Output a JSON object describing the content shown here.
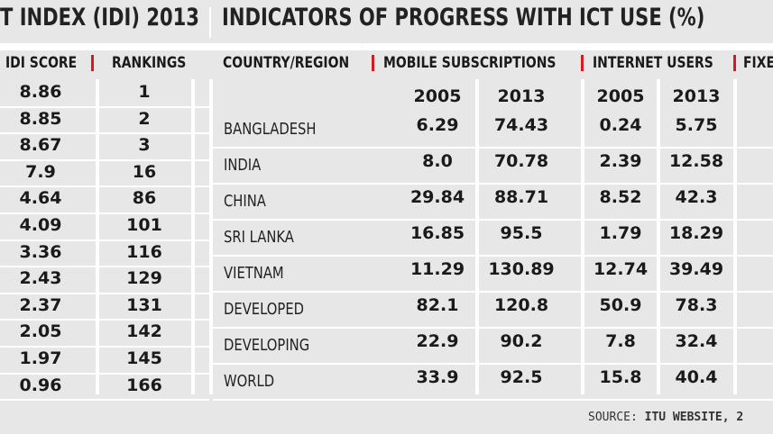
{
  "titles": {
    "left": "T INDEX (IDI) 2013",
    "right": "INDICATORS OF PROGRESS WITH ICT USE (%)"
  },
  "left_table": {
    "col_idi": "IDI SCORE",
    "col_rank": "RANKINGS",
    "rows": [
      {
        "score": "8.86",
        "rank": "1"
      },
      {
        "score": "8.85",
        "rank": "2"
      },
      {
        "score": "8.67",
        "rank": "3"
      },
      {
        "score": "7.9",
        "rank": "16"
      },
      {
        "score": "4.64",
        "rank": "86"
      },
      {
        "score": "4.09",
        "rank": "101"
      },
      {
        "score": "3.36",
        "rank": "116"
      },
      {
        "score": "2.43",
        "rank": "129"
      },
      {
        "score": "2.37",
        "rank": "131"
      },
      {
        "score": "2.05",
        "rank": "142"
      },
      {
        "score": "1.97",
        "rank": "145"
      },
      {
        "score": "0.96",
        "rank": "166"
      }
    ]
  },
  "right_table": {
    "col_country": "COUNTRY/REGION",
    "col_mobile": "MOBILE SUBSCRIPTIONS",
    "col_internet": "INTERNET USERS",
    "col_fixed": "FIXE",
    "years": [
      "2005",
      "2013",
      "2005",
      "2013"
    ],
    "rows": [
      {
        "country": "BANGLADESH",
        "m2005": "6.29",
        "m2013": "74.43",
        "i2005": "0.24",
        "i2013": "5.75"
      },
      {
        "country": "INDIA",
        "m2005": "8.0",
        "m2013": "70.78",
        "i2005": "2.39",
        "i2013": "12.58"
      },
      {
        "country": "CHINA",
        "m2005": "29.84",
        "m2013": "88.71",
        "i2005": "8.52",
        "i2013": "42.3"
      },
      {
        "country": "SRI LANKA",
        "m2005": "16.85",
        "m2013": "95.5",
        "i2005": "1.79",
        "i2013": "18.29"
      },
      {
        "country": "VIETNAM",
        "m2005": "11.29",
        "m2013": "130.89",
        "i2005": "12.74",
        "i2013": "39.49"
      },
      {
        "country": "DEVELOPED",
        "m2005": "82.1",
        "m2013": "120.8",
        "i2005": "50.9",
        "i2013": "78.3"
      },
      {
        "country": "DEVELOPING",
        "m2005": "22.9",
        "m2013": "90.2",
        "i2005": "7.8",
        "i2013": "32.4"
      },
      {
        "country": "WORLD",
        "m2005": "33.9",
        "m2013": "92.5",
        "i2005": "15.8",
        "i2013": "40.4"
      }
    ]
  },
  "source": {
    "label": "SOURCE:",
    "value": "ITU WEBSITE, 2"
  }
}
